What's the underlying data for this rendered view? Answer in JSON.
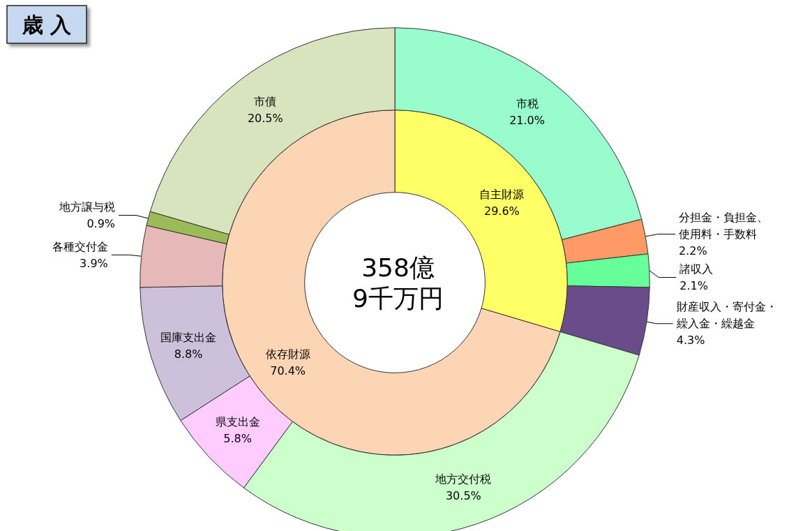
{
  "chart_data": [
    {
      "type": "donut",
      "annotations": [
        "358億\n9千万円"
      ],
      "categories": [
        "自主財源",
        "依存財源"
      ],
      "values": [
        29.6,
        70.4
      ],
      "value_labels": [
        "29.6%",
        "70.4%"
      ],
      "colors": [
        "#ffff66",
        "#fcd5b4"
      ]
    },
    {
      "type": "donut",
      "title": "歳 入",
      "categories": [
        "市税",
        "分担金・負担金、使用料・手数料",
        "諸収入",
        "財産収入・寄付金・繰入金・繰越金",
        "地方交付税",
        "県支出金",
        "国庫支出金",
        "各種交付金",
        "地方譲与税",
        "市債"
      ],
      "values": [
        21.0,
        2.2,
        2.1,
        4.3,
        30.5,
        5.8,
        8.8,
        3.9,
        0.9,
        20.5
      ],
      "value_labels": [
        "21.0%",
        "2.2%",
        "2.1%",
        "4.3%",
        "30.5%",
        "5.8%",
        "8.8%",
        "3.9%",
        "0.9%",
        "20.5%"
      ],
      "colors": [
        "#99fccc",
        "#ff9966",
        "#66ff99",
        "#6a4c8a",
        "#ccffcc",
        "#ffccff",
        "#ccc0da",
        "#e6b9b8",
        "#9bbb59",
        "#d7e4bd"
      ]
    }
  ]
}
